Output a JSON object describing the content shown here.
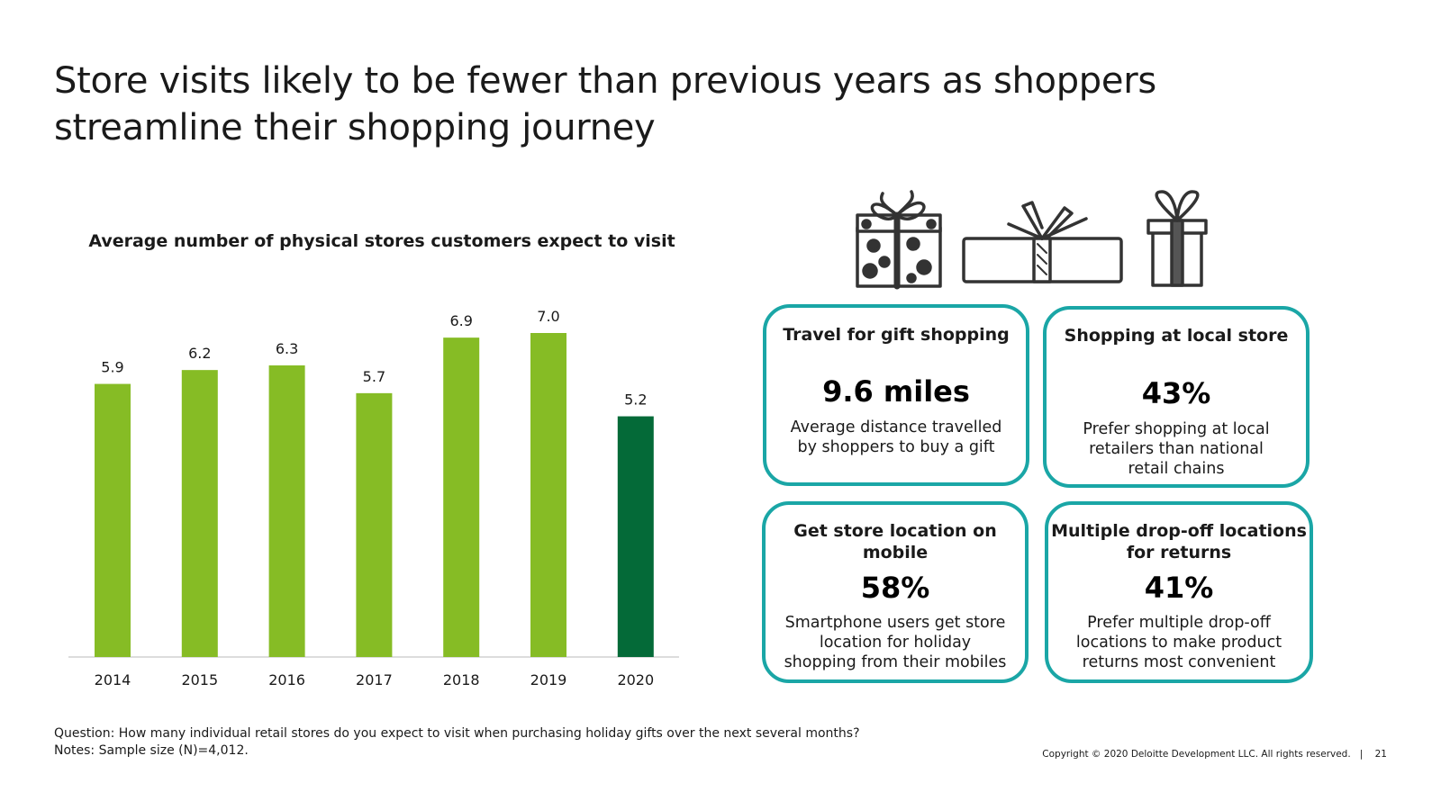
{
  "title": {
    "line1": "Store visits likely to be fewer than previous years as shoppers",
    "line2": "streamline their shopping journey"
  },
  "chart_data": {
    "type": "bar",
    "title": "Average number of physical stores customers expect to visit",
    "categories": [
      "2014",
      "2015",
      "2016",
      "2017",
      "2018",
      "2019",
      "2020"
    ],
    "values": [
      5.9,
      6.2,
      6.3,
      5.7,
      6.9,
      7.0,
      5.2
    ],
    "value_labels": [
      "5.9",
      "6.2",
      "6.3",
      "5.7",
      "6.9",
      "7.0",
      "5.2"
    ],
    "highlight_index": 6,
    "colors": {
      "default": "#86bc25",
      "highlight": "#046a38",
      "axis": "#d0d0d0"
    },
    "ylim": [
      0,
      7.0
    ],
    "xlabel": "",
    "ylabel": "",
    "grid": false
  },
  "cards": [
    {
      "title": "Travel for gift shopping",
      "value": "9.6 miles",
      "desc": [
        "Average distance travelled",
        "by shoppers to buy a gift"
      ]
    },
    {
      "title": "Shopping at local store",
      "value": "43%",
      "desc": [
        "Prefer shopping at local",
        "retailers than national",
        "retail chains"
      ]
    },
    {
      "title": [
        "Get store location on",
        "mobile"
      ],
      "value": "58%",
      "desc": [
        "Smartphone users get store",
        "location for holiday",
        "shopping from their mobiles"
      ]
    },
    {
      "title": [
        "Multiple drop-off locations",
        "for returns"
      ],
      "value": "41%",
      "desc": [
        "Prefer multiple drop-off",
        "locations to make product",
        "returns most convenient"
      ]
    }
  ],
  "card_border_color": "#1aa6a6",
  "icons": [
    "polka-dot-gift-icon",
    "wide-gift-box-icon",
    "tall-gift-icon"
  ],
  "footnote": {
    "question": "Question: How many individual retail stores do you expect to visit when purchasing holiday gifts over the next several months?",
    "notes": "Notes: Sample size (N)=4,012."
  },
  "copyright": "Copyright © 2020 Deloitte Development LLC. All rights reserved.",
  "page_number": "21"
}
